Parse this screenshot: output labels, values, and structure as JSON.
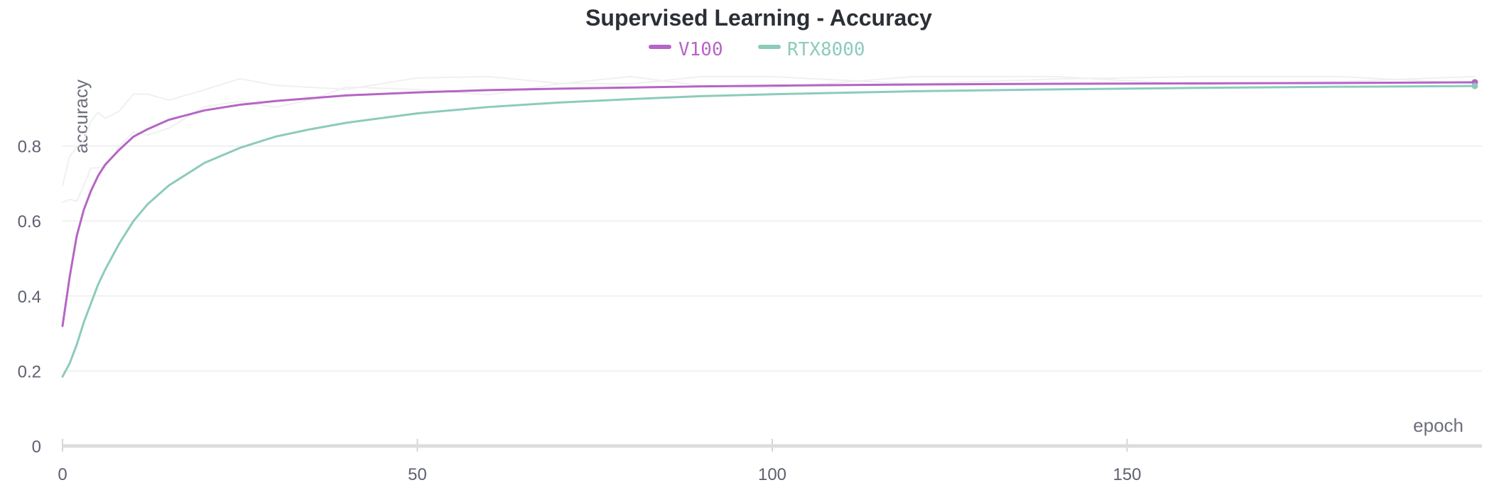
{
  "chart_data": {
    "type": "line",
    "title": "Supervised Learning - Accuracy",
    "xlabel": "epoch",
    "ylabel": "accuracy",
    "xlim": [
      0,
      200
    ],
    "ylim": [
      0,
      1
    ],
    "xticks": [
      0,
      50,
      100,
      150
    ],
    "yticks": [
      0,
      0.2,
      0.4,
      0.6,
      0.8
    ],
    "grid": true,
    "legend": "top-center",
    "raw_color": "#f0f0f2",
    "series": [
      {
        "name": "V100",
        "color": "#b565c4",
        "x": [
          0,
          1,
          2,
          3,
          4,
          5,
          6,
          8,
          10,
          12,
          15,
          20,
          25,
          30,
          40,
          50,
          60,
          70,
          80,
          90,
          100,
          120,
          140,
          160,
          180,
          199
        ],
        "values": [
          0.32,
          0.45,
          0.56,
          0.63,
          0.68,
          0.72,
          0.75,
          0.79,
          0.825,
          0.845,
          0.87,
          0.895,
          0.91,
          0.92,
          0.935,
          0.943,
          0.949,
          0.953,
          0.956,
          0.959,
          0.961,
          0.964,
          0.966,
          0.967,
          0.968,
          0.97
        ]
      },
      {
        "name": "RTX8000",
        "color": "#8ccbbc",
        "x": [
          0,
          1,
          2,
          3,
          4,
          5,
          6,
          8,
          10,
          12,
          15,
          20,
          25,
          30,
          35,
          40,
          50,
          60,
          70,
          80,
          90,
          100,
          120,
          140,
          160,
          180,
          199
        ],
        "values": [
          0.185,
          0.22,
          0.27,
          0.33,
          0.38,
          0.43,
          0.47,
          0.54,
          0.6,
          0.645,
          0.695,
          0.755,
          0.795,
          0.825,
          0.845,
          0.862,
          0.887,
          0.904,
          0.916,
          0.925,
          0.933,
          0.938,
          0.946,
          0.951,
          0.955,
          0.958,
          0.96
        ]
      }
    ]
  }
}
